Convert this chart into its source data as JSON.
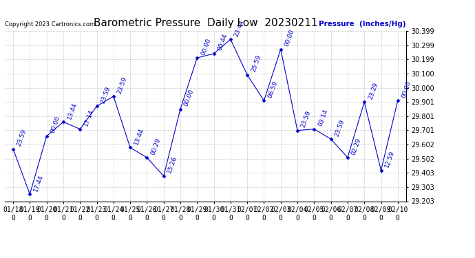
{
  "title": "Barometric Pressure  Daily Low  20230211",
  "ylabel": "Pressure  (Inches/Hg)",
  "copyright": "Copyright 2023 Cartronics.com",
  "background_color": "#ffffff",
  "line_color": "#0000cc",
  "grid_color": "#bbbbbb",
  "ylim": [
    29.203,
    30.399
  ],
  "yticks": [
    29.203,
    29.303,
    29.403,
    29.502,
    29.602,
    29.701,
    29.801,
    29.901,
    30.0,
    30.1,
    30.199,
    30.299,
    30.399
  ],
  "dates": [
    "01/18\n0",
    "01/19\n0",
    "01/20\n0",
    "01/21\n0",
    "01/22\n0",
    "01/23\n0",
    "01/24\n0",
    "01/25\n0",
    "01/26\n0",
    "01/27\n0",
    "01/28\n0",
    "01/29\n0",
    "01/30\n0",
    "01/31\n0",
    "02/01\n0",
    "02/02\n0",
    "02/03\n0",
    "02/04\n0",
    "02/05\n0",
    "02/06\n0",
    "02/07\n0",
    "02/08\n0",
    "02/09\n0",
    "02/10\n0"
  ],
  "dates_clean": [
    "01/18",
    "01/19",
    "01/20",
    "01/21",
    "01/22",
    "01/23",
    "01/24",
    "01/25",
    "01/26",
    "01/27",
    "01/28",
    "01/29",
    "01/30",
    "01/31",
    "02/01",
    "02/02",
    "02/03",
    "02/04",
    "02/05",
    "02/06",
    "02/07",
    "02/08",
    "02/09",
    "02/10"
  ],
  "values": [
    29.57,
    29.253,
    29.66,
    29.76,
    29.71,
    29.87,
    29.94,
    29.58,
    29.51,
    29.38,
    29.85,
    30.21,
    30.24,
    30.34,
    30.09,
    29.91,
    30.27,
    29.7,
    29.71,
    29.64,
    29.51,
    29.9,
    29.42,
    29.91
  ],
  "point_labels": [
    "23:59",
    "17:44",
    "00:00",
    "13:44",
    "17:14",
    "23:59",
    "23:59",
    "13:44",
    "00:29",
    "15:26",
    "00:00",
    "00:00",
    "00:44",
    "23:44",
    "25:59",
    "06:59",
    "00:00",
    "23:59",
    "03:14",
    "23:59",
    "02:29",
    "23:29",
    "12:59",
    "00:00"
  ],
  "title_fontsize": 11,
  "label_fontsize": 7.5,
  "tick_fontsize": 7,
  "point_label_fontsize": 6.5
}
